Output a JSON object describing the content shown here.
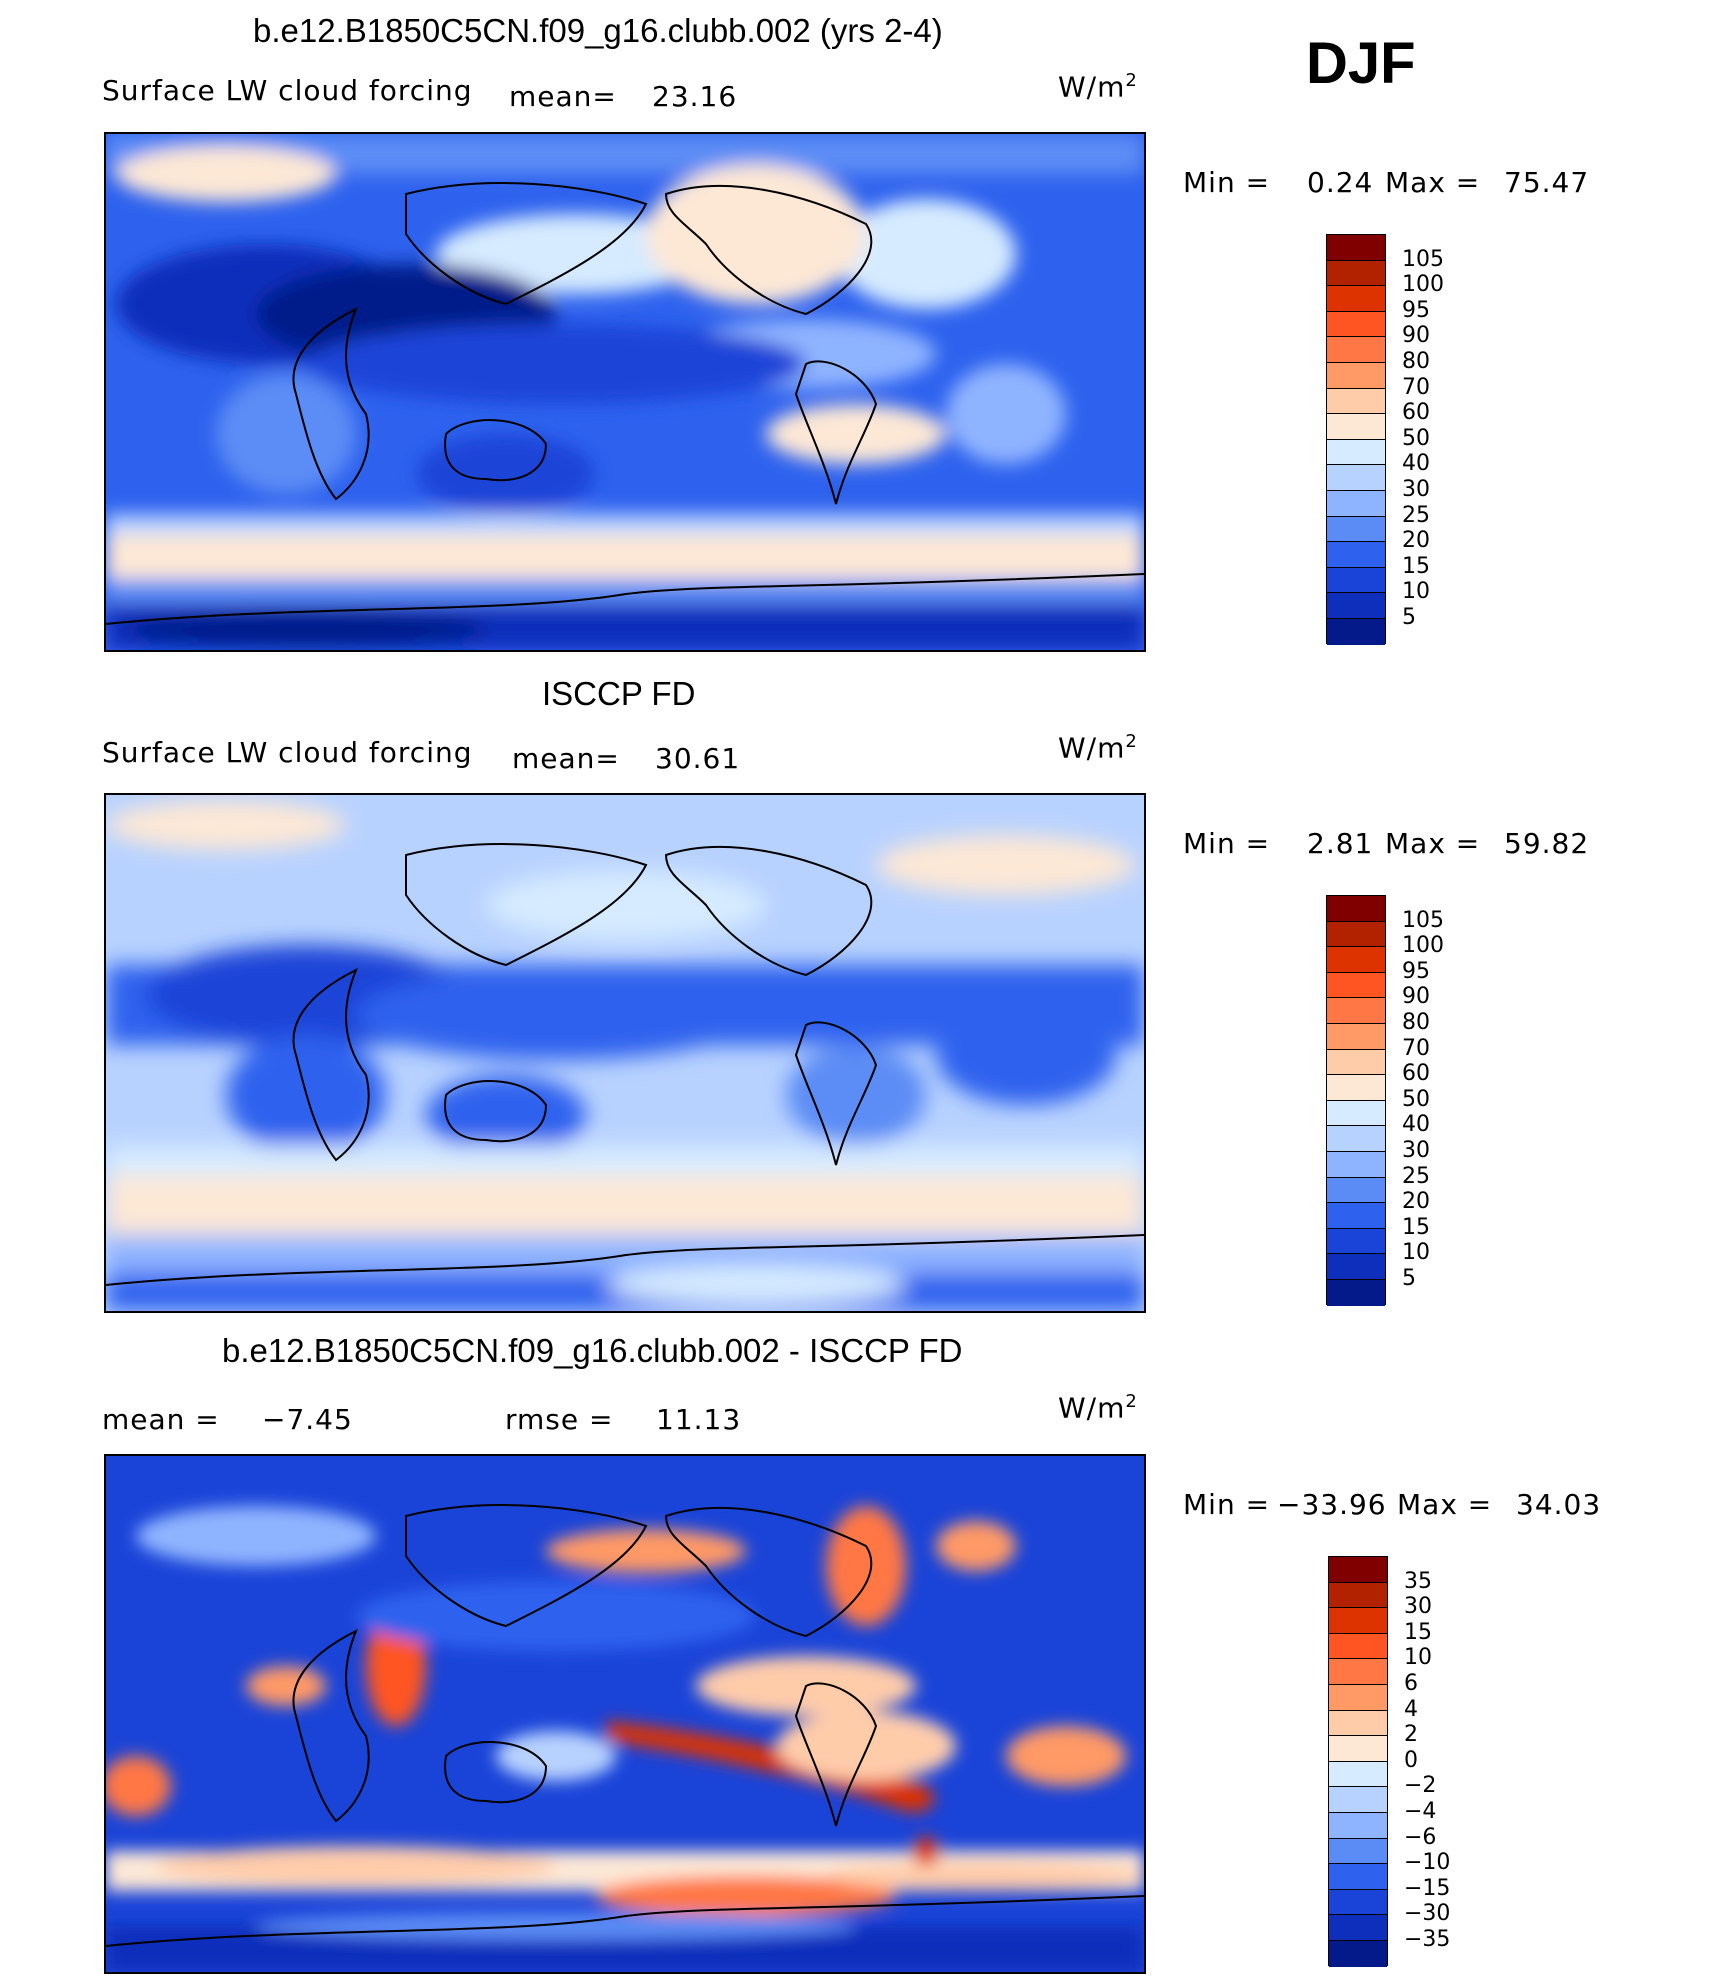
{
  "header": {
    "season": "DJF"
  },
  "colors": {
    "ocean_deep": "#1133aa",
    "land_line": "#000000"
  },
  "chart_data": [
    {
      "type": "heatmap",
      "title": "b.e12.B1850C5CN.f09_g16.clubb.002 (yrs 2-4)",
      "variable": "Surface LW cloud forcing",
      "mean_label": "mean=",
      "mean_value": "23.16",
      "units": "W/m",
      "units_sup": "2",
      "min_label": "Min =",
      "min_value": "0.24",
      "max_label": "Max =",
      "max_value": "75.47",
      "colorbar_levels": [
        "105",
        "100",
        "95",
        "90",
        "80",
        "70",
        "60",
        "50",
        "40",
        "30",
        "25",
        "20",
        "15",
        "10",
        "5"
      ],
      "colorbar_colors": [
        "#800000",
        "#b22200",
        "#dd3300",
        "#ff5522",
        "#ff7744",
        "#ff9966",
        "#ffccaa",
        "#fde8d6",
        "#d6ebff",
        "#b8d2ff",
        "#8fb4ff",
        "#5b8cf5",
        "#2e62ee",
        "#1a44d8",
        "#0d2fbb",
        "#051a8a"
      ]
    },
    {
      "type": "heatmap",
      "title": "ISCCP FD",
      "variable": "Surface LW cloud forcing",
      "mean_label": "mean=",
      "mean_value": "30.61",
      "units": "W/m",
      "units_sup": "2",
      "min_label": "Min =",
      "min_value": "2.81",
      "max_label": "Max =",
      "max_value": "59.82",
      "colorbar_levels": [
        "105",
        "100",
        "95",
        "90",
        "80",
        "70",
        "60",
        "50",
        "40",
        "30",
        "25",
        "20",
        "15",
        "10",
        "5"
      ],
      "colorbar_colors": [
        "#800000",
        "#b22200",
        "#dd3300",
        "#ff5522",
        "#ff7744",
        "#ff9966",
        "#ffccaa",
        "#fde8d6",
        "#d6ebff",
        "#b8d2ff",
        "#8fb4ff",
        "#5b8cf5",
        "#2e62ee",
        "#1a44d8",
        "#0d2fbb",
        "#051a8a"
      ]
    },
    {
      "type": "heatmap",
      "title": "b.e12.B1850C5CN.f09_g16.clubb.002 - ISCCP FD",
      "mean_label": "mean =",
      "mean_value": "−7.45",
      "rmse_label": "rmse =",
      "rmse_value": "11.13",
      "units": "W/m",
      "units_sup": "2",
      "min_label": "Min =",
      "min_value": "−33.96",
      "max_label": "Max =",
      "max_value": "34.03",
      "colorbar_levels": [
        "35",
        "30",
        "15",
        "10",
        "6",
        "4",
        "2",
        "0",
        "−2",
        "−4",
        "−6",
        "−10",
        "−15",
        "−30",
        "−35"
      ],
      "colorbar_colors": [
        "#800000",
        "#b22200",
        "#dd3300",
        "#ff5522",
        "#ff7744",
        "#ff9966",
        "#ffccaa",
        "#fde8d6",
        "#d6ebff",
        "#b8d2ff",
        "#8fb4ff",
        "#5b8cf5",
        "#2e62ee",
        "#1a44d8",
        "#0d2fbb",
        "#051a8a"
      ]
    }
  ]
}
